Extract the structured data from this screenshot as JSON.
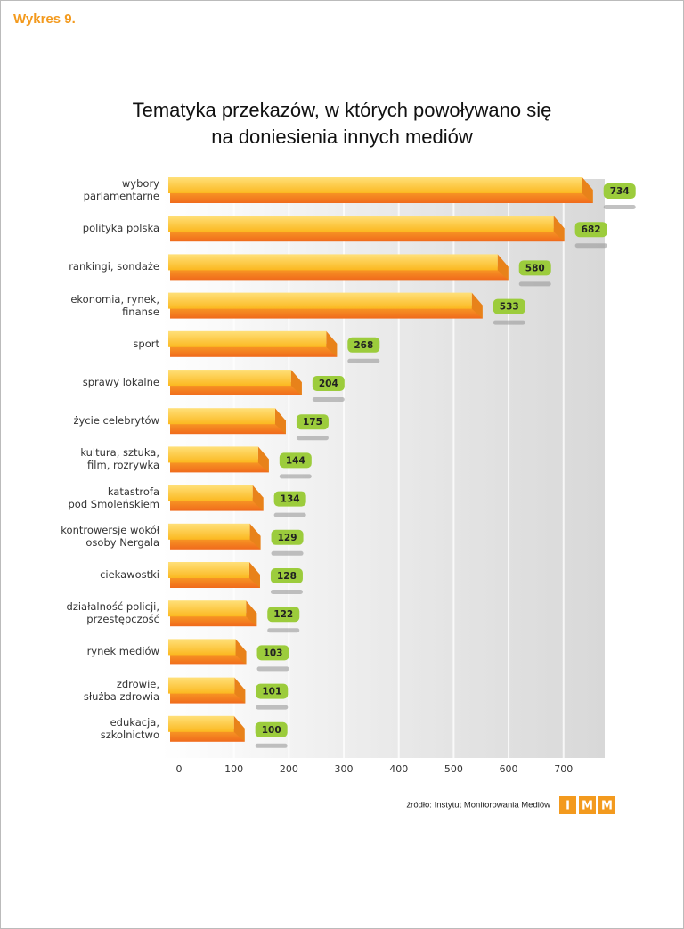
{
  "header": "Wykres 9.",
  "chart_data": {
    "type": "bar",
    "orientation": "horizontal",
    "title": "Tematyka przekazów, w których powoływano się\nna doniesienia innych mediów",
    "categories": [
      "wybory\nparlamentarne",
      "polityka polska",
      "rankingi, sondaże",
      "ekonomia, rynek,\nfinanse",
      "sport",
      "sprawy lokalne",
      "życie celebrytów",
      "kultura, sztuka,\nfilm, rozrywka",
      "katastrofa\npod Smoleńskiem",
      "kontrowersje wokół\nosoby Nergala",
      "ciekawostki",
      "działalność policji,\nprzestępczość",
      "rynek mediów",
      "zdrowie,\nsłużba zdrowia",
      "edukacja,\nszkolnictwo"
    ],
    "values": [
      734,
      682,
      580,
      533,
      268,
      204,
      175,
      144,
      134,
      129,
      128,
      122,
      103,
      101,
      100
    ],
    "xlim": [
      0,
      775
    ],
    "xticks": [
      0,
      100,
      200,
      300,
      400,
      500,
      600,
      700
    ],
    "color": "#fdc82f",
    "label_color": "#9ccc3c",
    "grid": true
  },
  "source": "źródło: Instytut Monitorowania Mediów",
  "logo": [
    "I",
    "M",
    "M"
  ]
}
